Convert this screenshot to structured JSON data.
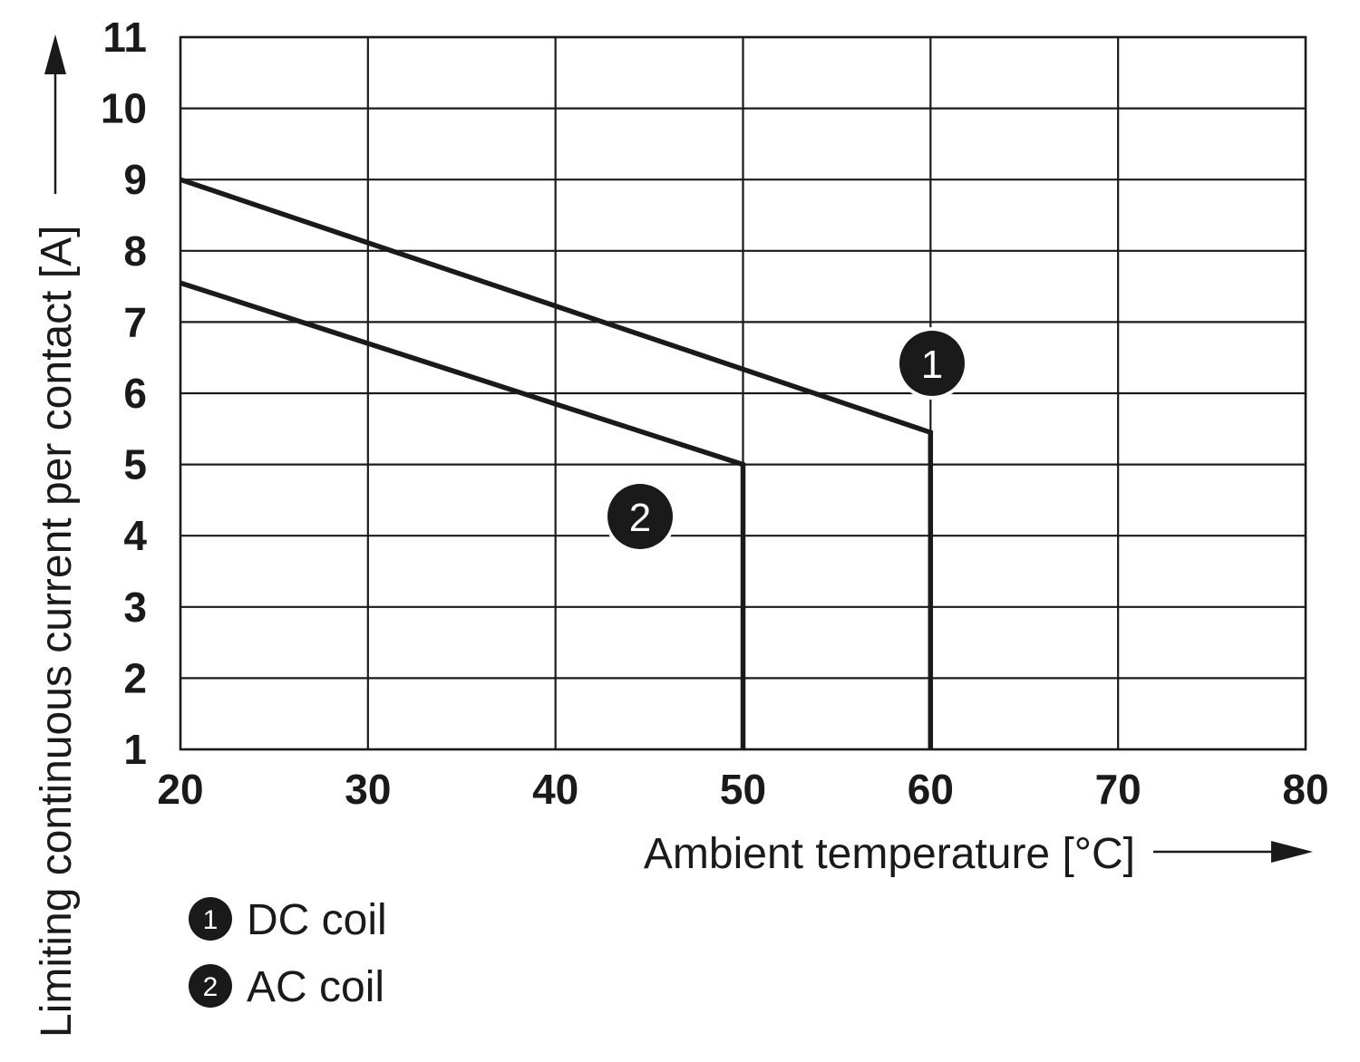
{
  "chart_data": {
    "type": "line",
    "xlabel": "Ambient temperature [°C]",
    "ylabel": "Limiting continuous current per contact [A]",
    "xlim": [
      20,
      80
    ],
    "ylim": [
      1,
      11
    ],
    "x_ticks": [
      "20",
      "30",
      "40",
      "50",
      "60",
      "70",
      "80"
    ],
    "y_ticks": [
      "1",
      "2",
      "3",
      "4",
      "5",
      "6",
      "7",
      "8",
      "9",
      "10",
      "11"
    ],
    "grid": true,
    "series": [
      {
        "marker": "1",
        "points": [
          [
            20,
            9.0
          ],
          [
            60,
            5.45
          ],
          [
            60,
            1.0
          ]
        ]
      },
      {
        "marker": "2",
        "points": [
          [
            20,
            7.55
          ],
          [
            50,
            5.0
          ],
          [
            50,
            1.0
          ]
        ]
      }
    ],
    "legend": [
      {
        "marker": "1",
        "label": "DC coil"
      },
      {
        "marker": "2",
        "label": "AC coil"
      }
    ],
    "colors": {
      "line": "#1a1a1a",
      "marker_fill": "#1a1a1a",
      "marker_text": "#ffffff"
    }
  }
}
